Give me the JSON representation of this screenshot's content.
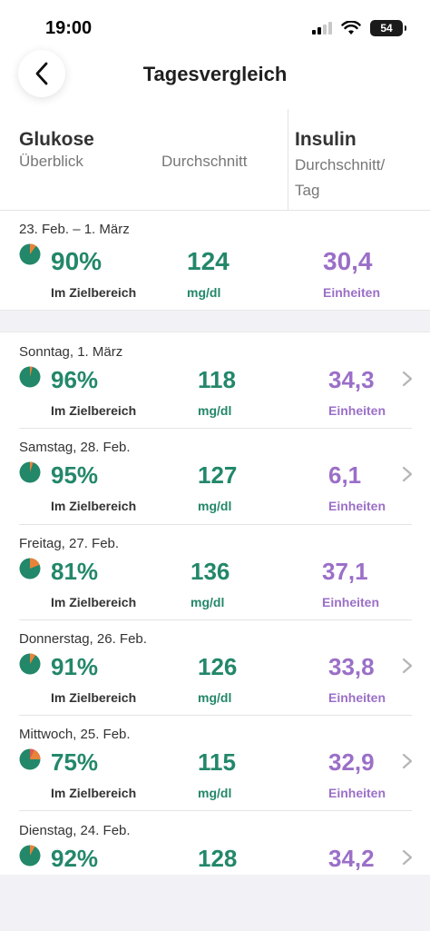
{
  "status": {
    "time": "19:00",
    "battery": "54"
  },
  "nav": {
    "title": "Tagesvergleich"
  },
  "header": {
    "glukose": "Glukose",
    "ueberblick": "Überblick",
    "durchschnitt": "Durchschnitt",
    "insulin": "Insulin",
    "insulin_sub": "Durchschnitt/ Tag"
  },
  "colors": {
    "green": "#23876a",
    "purple": "#9b6fc8",
    "orange": "#e8833a",
    "red": "#e05a4f"
  },
  "summary": {
    "range": "23. Feb. – 1. März",
    "in_range_pct": "90%",
    "in_range_label": "Im Zielbereich",
    "avg": "124",
    "avg_unit": "mg/dl",
    "insulin": "30,4",
    "insulin_unit": "Einheiten",
    "pie_out_fraction": 0.1
  },
  "days": [
    {
      "date": "Sonntag, 1. März",
      "pct": "96%",
      "label": "Im Zielbereich",
      "avg": "118",
      "unit": "mg/dl",
      "insulin": "34,3",
      "ins_unit": "Einheiten",
      "pie_out_fraction": 0.04,
      "chevron": true
    },
    {
      "date": "Samstag, 28. Feb.",
      "pct": "95%",
      "label": "Im Zielbereich",
      "avg": "127",
      "unit": "mg/dl",
      "insulin": "6,1",
      "ins_unit": "Einheiten",
      "pie_out_fraction": 0.05,
      "chevron": true
    },
    {
      "date": "Freitag, 27. Feb.",
      "pct": "81%",
      "label": "Im Zielbereich",
      "avg": "136",
      "unit": "mg/dl",
      "insulin": "37,1",
      "ins_unit": "Einheiten",
      "pie_out_fraction": 0.19,
      "chevron": false
    },
    {
      "date": "Donnerstag, 26. Feb.",
      "pct": "91%",
      "label": "Im Zielbereich",
      "avg": "126",
      "unit": "mg/dl",
      "insulin": "33,8",
      "ins_unit": "Einheiten",
      "pie_out_fraction": 0.09,
      "chevron": true
    },
    {
      "date": "Mittwoch, 25. Feb.",
      "pct": "75%",
      "label": "Im Zielbereich",
      "avg": "115",
      "unit": "mg/dl",
      "insulin": "32,9",
      "ins_unit": "Einheiten",
      "pie_out_fraction": 0.25,
      "chevron": true
    },
    {
      "date": "Dienstag, 24. Feb.",
      "pct": "92%",
      "label": "",
      "avg": "128",
      "unit": "",
      "insulin": "34,2",
      "ins_unit": "",
      "pie_out_fraction": 0.08,
      "chevron": true
    }
  ]
}
